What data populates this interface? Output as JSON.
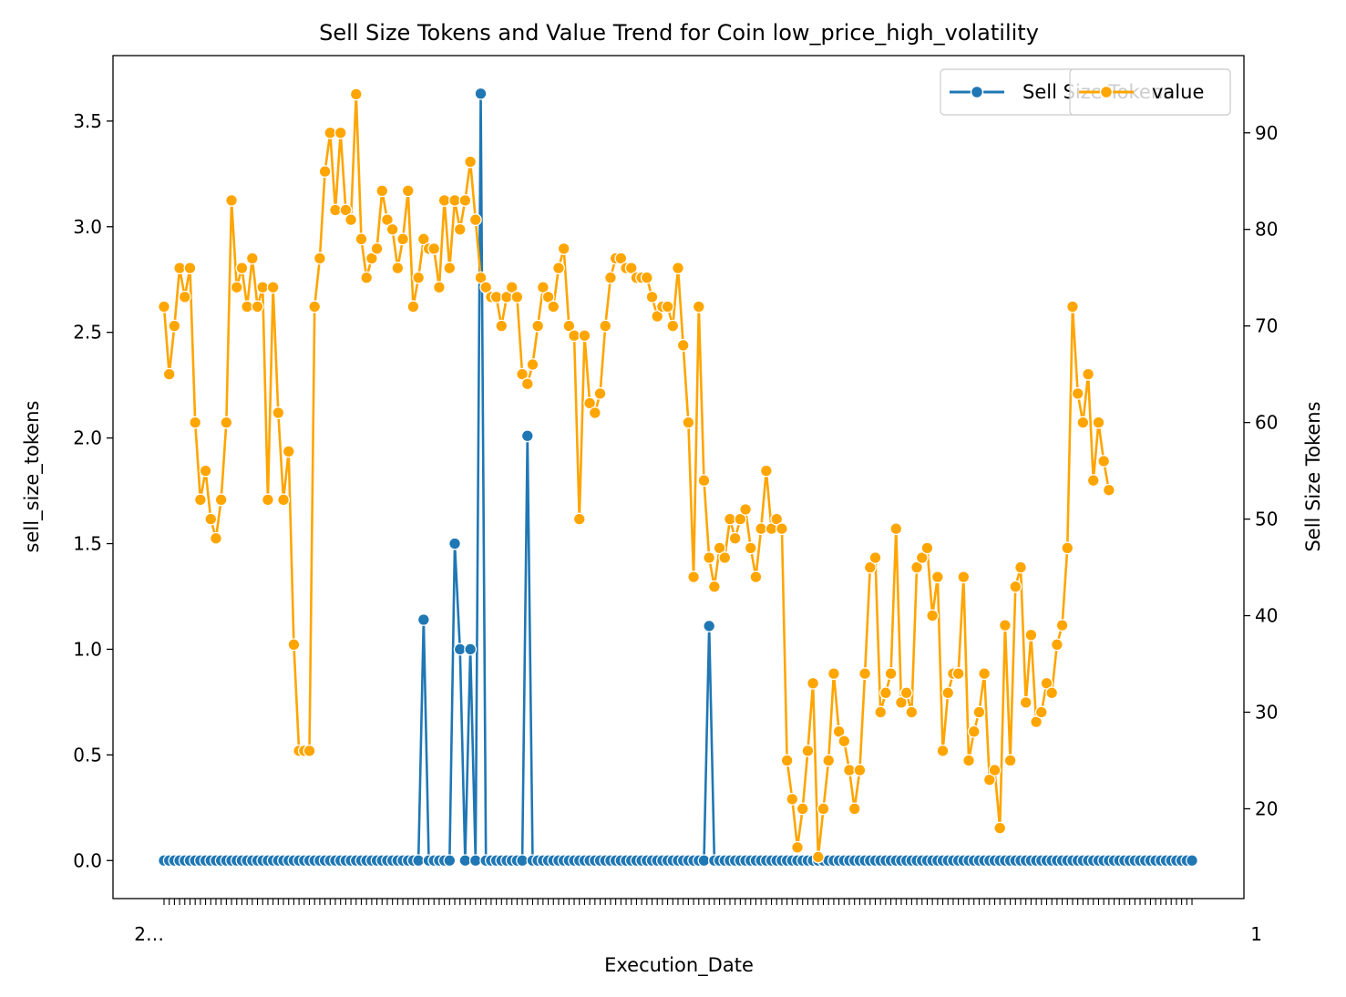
{
  "chart_data": {
    "type": "line",
    "title": "Sell Size Tokens and Value Trend for Coin low_price_high_volatility",
    "xlabel": "Execution_Date",
    "ylabel_left": "sell_size_tokens",
    "ylabel_right": "Sell Size Tokens",
    "x_tick_labels_unreadable": "2…",
    "x_tick_label_last": "1",
    "ylim_left": [
      -0.18,
      3.81
    ],
    "ylim_right": [
      10.7,
      98.0
    ],
    "yticks_left": [
      "0.0",
      "0.5",
      "1.0",
      "1.5",
      "2.0",
      "2.5",
      "3.0",
      "3.5"
    ],
    "yticks_left_values": [
      0.0,
      0.5,
      1.0,
      1.5,
      2.0,
      2.5,
      3.0,
      3.5
    ],
    "yticks_right": [
      "20",
      "30",
      "40",
      "50",
      "60",
      "70",
      "80",
      "90"
    ],
    "yticks_right_values": [
      20,
      30,
      40,
      50,
      60,
      70,
      80,
      90
    ],
    "grid": false,
    "legend_left": {
      "label": "Sell Size Tokens",
      "placement": "top-right"
    },
    "legend_right": {
      "label": "value",
      "placement": "top-right"
    },
    "series": [
      {
        "name": "Sell Size Tokens",
        "axis": "left",
        "color": "#1f77b4",
        "values": [
          0,
          0,
          0,
          0,
          0,
          0,
          0,
          0,
          0,
          0,
          0,
          0,
          0,
          0,
          0,
          0,
          0,
          0,
          0,
          0,
          0,
          0,
          0,
          0,
          0,
          0,
          0,
          0,
          0,
          0,
          0,
          0,
          0,
          0,
          0,
          0,
          0,
          0,
          0,
          0,
          0,
          0,
          0,
          0,
          0,
          0,
          0,
          0,
          0,
          0,
          1.14,
          0,
          0,
          0,
          0,
          0,
          1.5,
          1.0,
          0,
          1.0,
          0,
          3.63,
          0,
          0,
          0,
          0,
          0,
          0,
          0,
          0,
          2.01,
          0,
          0,
          0,
          0,
          0,
          0,
          0,
          0,
          0,
          0,
          0,
          0,
          0,
          0,
          0,
          0,
          0,
          0,
          0,
          0,
          0,
          0,
          0,
          0,
          0,
          0,
          0,
          0,
          0,
          0,
          0,
          0,
          0,
          0,
          1.11,
          0,
          0,
          0,
          0,
          0,
          0,
          0,
          0,
          0,
          0,
          0,
          0,
          0,
          0,
          0,
          0,
          0,
          0,
          0,
          0,
          0,
          0,
          0,
          0,
          0,
          0,
          0,
          0,
          0,
          0,
          0,
          0,
          0,
          0,
          0,
          0,
          0,
          0,
          0,
          0,
          0,
          0,
          0,
          0,
          0,
          0,
          0,
          0,
          0,
          0,
          0,
          0,
          0,
          0,
          0,
          0,
          0,
          0,
          0,
          0,
          0,
          0,
          0,
          0,
          0,
          0,
          0,
          0,
          0,
          0,
          0,
          0,
          0,
          0,
          0,
          0,
          0,
          0,
          0,
          0,
          0,
          0,
          0,
          0,
          0,
          0,
          0,
          0,
          0,
          0,
          0,
          0,
          0
        ]
      },
      {
        "name": "value",
        "axis": "right",
        "color": "#ffa500",
        "values": [
          72,
          65,
          70,
          76,
          73,
          76,
          60,
          52,
          55,
          50,
          48,
          52,
          60,
          83,
          74,
          76,
          72,
          77,
          72,
          74,
          52,
          74,
          61,
          52,
          57,
          37,
          26,
          26,
          26,
          72,
          77,
          86,
          90,
          82,
          90,
          82,
          81,
          94,
          79,
          75,
          77,
          78,
          84,
          81,
          80,
          76,
          79,
          84,
          72,
          75,
          79,
          78,
          78,
          74,
          83,
          76,
          83,
          80,
          83,
          87,
          81,
          75,
          74,
          73,
          73,
          70,
          73,
          74,
          73,
          65,
          64,
          66,
          70,
          74,
          73,
          72,
          76,
          78,
          70,
          69,
          50,
          69,
          62,
          61,
          63,
          70,
          75,
          77,
          77,
          76,
          76,
          75,
          75,
          75,
          73,
          71,
          72,
          72,
          70,
          76,
          68,
          60,
          44,
          72,
          54,
          46,
          43,
          47,
          46,
          50,
          48,
          50,
          51,
          47,
          44,
          49,
          55,
          49,
          50,
          49,
          25,
          21,
          16,
          20,
          26,
          33,
          15,
          20,
          25,
          34,
          28,
          27,
          24,
          20,
          24,
          34,
          45,
          46,
          30,
          32,
          34,
          49,
          31,
          32,
          30,
          45,
          46,
          47,
          40,
          44,
          26,
          32,
          34,
          34,
          44,
          25,
          28,
          30,
          34,
          23,
          24,
          18,
          39,
          25,
          43,
          45,
          31,
          38,
          29,
          30,
          33,
          32,
          37,
          39,
          47,
          72,
          63,
          60,
          65,
          54,
          60,
          56,
          53
        ]
      }
    ]
  }
}
